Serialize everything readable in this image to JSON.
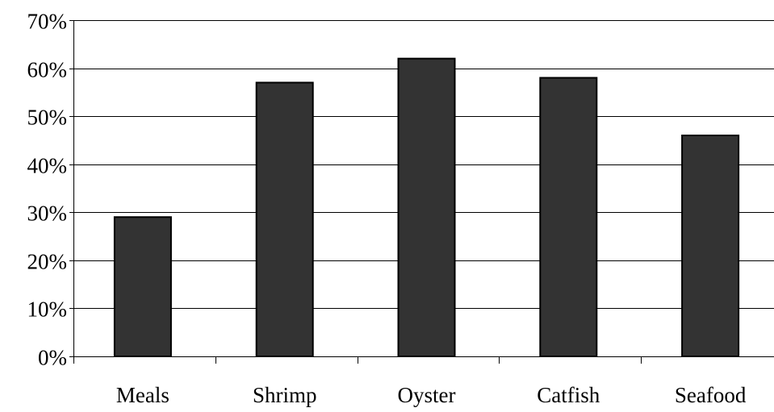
{
  "chart_data": {
    "type": "bar",
    "categories": [
      "Meals",
      "Shrimp",
      "Oyster",
      "Catfish",
      "Seafood"
    ],
    "values": [
      29,
      57,
      62,
      58,
      46
    ],
    "title": "",
    "xlabel": "",
    "ylabel": "",
    "ylim": [
      0,
      70
    ],
    "y_ticks": [
      0,
      10,
      20,
      30,
      40,
      50,
      60,
      70
    ],
    "y_tick_labels": [
      "0%",
      "10%",
      "20%",
      "30%",
      "40%",
      "50%",
      "60%",
      "70%"
    ],
    "grid": true,
    "legend": "none",
    "bar_color": "#333333",
    "bar_edge_color": "#000000",
    "grid_color": "#000000"
  }
}
